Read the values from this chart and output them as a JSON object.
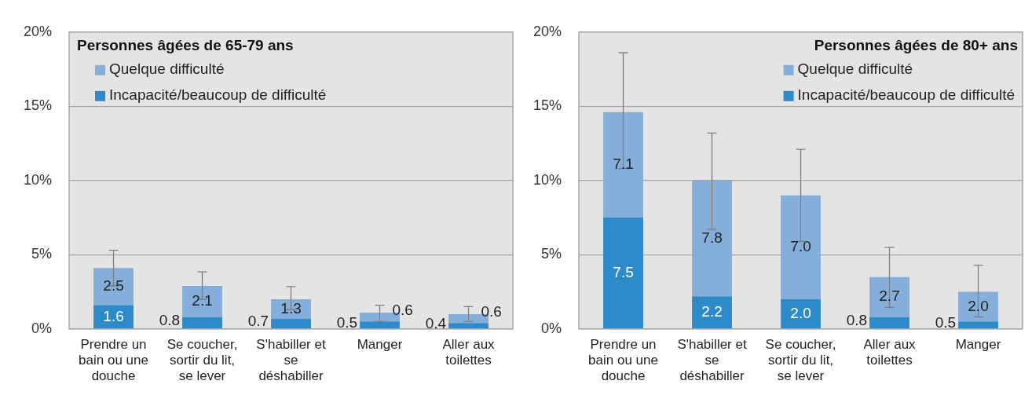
{
  "chart_data": [
    {
      "type": "bar",
      "stacked": true,
      "legend_title": "Personnes âgées de 65-79 ans",
      "legend": "top left",
      "grid": "y",
      "categories": [
        "Prendre un bain ou une douche",
        "Se coucher, sortir du lit, se lever",
        "S'habiller et se déshabiller",
        "Manger",
        "Aller aux toilettes"
      ],
      "ylim": [
        0,
        20
      ],
      "yticks": [
        {
          "value": 0,
          "label": "0%"
        },
        {
          "value": 5,
          "label": "5%"
        },
        {
          "value": 10,
          "label": "10%"
        },
        {
          "value": 15,
          "label": "15%"
        },
        {
          "value": 20,
          "label": "20%"
        }
      ],
      "series": [
        {
          "name": "Incapacité/beaucoup de difficulté",
          "color": "#2e8bc9",
          "values": [
            1.6,
            0.8,
            0.7,
            0.5,
            0.4
          ],
          "value_labels": [
            "1.6",
            "0.8",
            "0.7",
            "0.5",
            "0.4"
          ]
        },
        {
          "name": "Quelque difficulté",
          "color": "#85aedb",
          "values": [
            2.5,
            2.1,
            1.3,
            0.6,
            0.6
          ],
          "value_labels": [
            "2.5",
            "2.1",
            "1.3",
            "0.6",
            "0.6"
          ],
          "errors": [
            [
              2.9,
              5.3
            ],
            [
              2.0,
              3.85
            ],
            [
              1.3,
              2.85
            ],
            [
              0.5,
              1.6
            ],
            [
              0.5,
              1.5
            ]
          ]
        }
      ]
    },
    {
      "type": "bar",
      "stacked": true,
      "legend_title": "Personnes âgées de 80+ ans",
      "legend": "top right",
      "grid": "y",
      "categories": [
        "Prendre un bain ou une douche",
        "S'habiller et se déshabiller",
        "Se coucher, sortir du lit, se lever",
        "Aller aux toilettes",
        "Manger"
      ],
      "ylim": [
        0,
        20
      ],
      "yticks": [
        {
          "value": 0,
          "label": "0%"
        },
        {
          "value": 5,
          "label": "5%"
        },
        {
          "value": 10,
          "label": "10%"
        },
        {
          "value": 15,
          "label": "15%"
        },
        {
          "value": 20,
          "label": "20%"
        }
      ],
      "series": [
        {
          "name": "Incapacité/beaucoup de difficulté",
          "color": "#2e8bc9",
          "values": [
            7.5,
            2.2,
            2.0,
            0.8,
            0.5
          ],
          "value_labels": [
            "7.5",
            "2.2",
            "2.0",
            "0.8",
            "0.5"
          ]
        },
        {
          "name": "Quelque difficulté",
          "color": "#85aedb",
          "values": [
            7.1,
            7.8,
            7.0,
            2.7,
            2.0
          ],
          "value_labels": [
            "7.1",
            "7.8",
            "7.0",
            "2.7",
            "2.0"
          ],
          "errors": [
            [
              10.8,
              18.6
            ],
            [
              6.7,
              13.2
            ],
            [
              5.9,
              12.1
            ],
            [
              1.45,
              5.5
            ],
            [
              0.8,
              4.3
            ]
          ]
        }
      ]
    }
  ]
}
